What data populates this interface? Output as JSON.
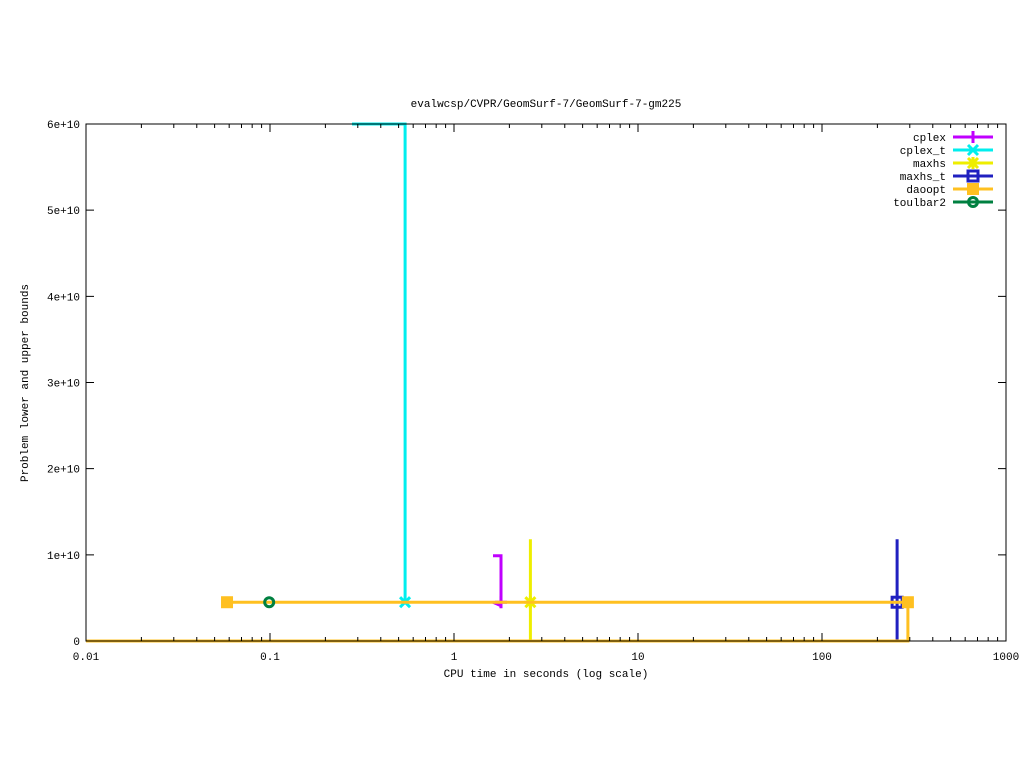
{
  "chart_data": {
    "type": "line",
    "title": "evalwcsp/CVPR/GeomSurf-7/GeomSurf-7-gm225",
    "xlabel": "CPU time in seconds (log scale)",
    "ylabel": "Problem lower and upper bounds",
    "xscale": "log",
    "xlim": [
      0.01,
      1000
    ],
    "ylim": [
      0,
      60000000000
    ],
    "xticks": [
      0.01,
      0.1,
      1,
      10,
      100,
      1000
    ],
    "xtick_labels": [
      "0.01",
      "0.1",
      "1",
      "10",
      "100",
      "1000"
    ],
    "yticks": [
      0,
      10000000000,
      20000000000,
      30000000000,
      40000000000,
      50000000000,
      60000000000
    ],
    "ytick_labels": [
      "0",
      "1e+10",
      "2e+10",
      "3e+10",
      "4e+10",
      "5e+10",
      "6e+10"
    ],
    "grid": false,
    "legend_position": "top-right",
    "series": [
      {
        "name": "cplex",
        "color": "#c000ff",
        "marker": "plus",
        "x": [
          1.63,
          1.8,
          1.8,
          1.63
        ],
        "y": [
          9900000000,
          9900000000,
          4100000000,
          4500000000
        ],
        "points": [
          [
            1.8,
            4500000000
          ]
        ]
      },
      {
        "name": "cplex_t",
        "color": "#00eeee",
        "marker": "cross",
        "x": [
          0.279,
          0.542,
          0.542
        ],
        "y": [
          60000000000,
          60000000000,
          4500000000
        ],
        "points": [
          [
            0.542,
            4500000000
          ]
        ]
      },
      {
        "name": "maxhs",
        "color": "#eeee00",
        "marker": "star",
        "x": [
          2.6,
          2.6
        ],
        "y": [
          11800000000,
          0
        ],
        "points": [
          [
            2.6,
            4500000000
          ]
        ]
      },
      {
        "name": "maxhs_t",
        "color": "#2020c0",
        "marker": "open-square",
        "x": [
          256,
          256
        ],
        "y": [
          11800000000,
          0
        ],
        "points": [
          [
            256,
            4500000000
          ]
        ]
      },
      {
        "name": "daoopt",
        "color": "#ffc020",
        "marker": "filled-square",
        "x": [
          0.0584,
          293,
          293,
          0.01
        ],
        "y": [
          4500000000,
          4500000000,
          0,
          0
        ],
        "points": [
          [
            0.0584,
            4500000000
          ],
          [
            293,
            4500000000
          ]
        ]
      },
      {
        "name": "toulbar2",
        "color": "#008040",
        "marker": "open-circle",
        "x": [],
        "y": [],
        "points": [
          [
            0.099,
            4500000000
          ]
        ]
      }
    ]
  }
}
